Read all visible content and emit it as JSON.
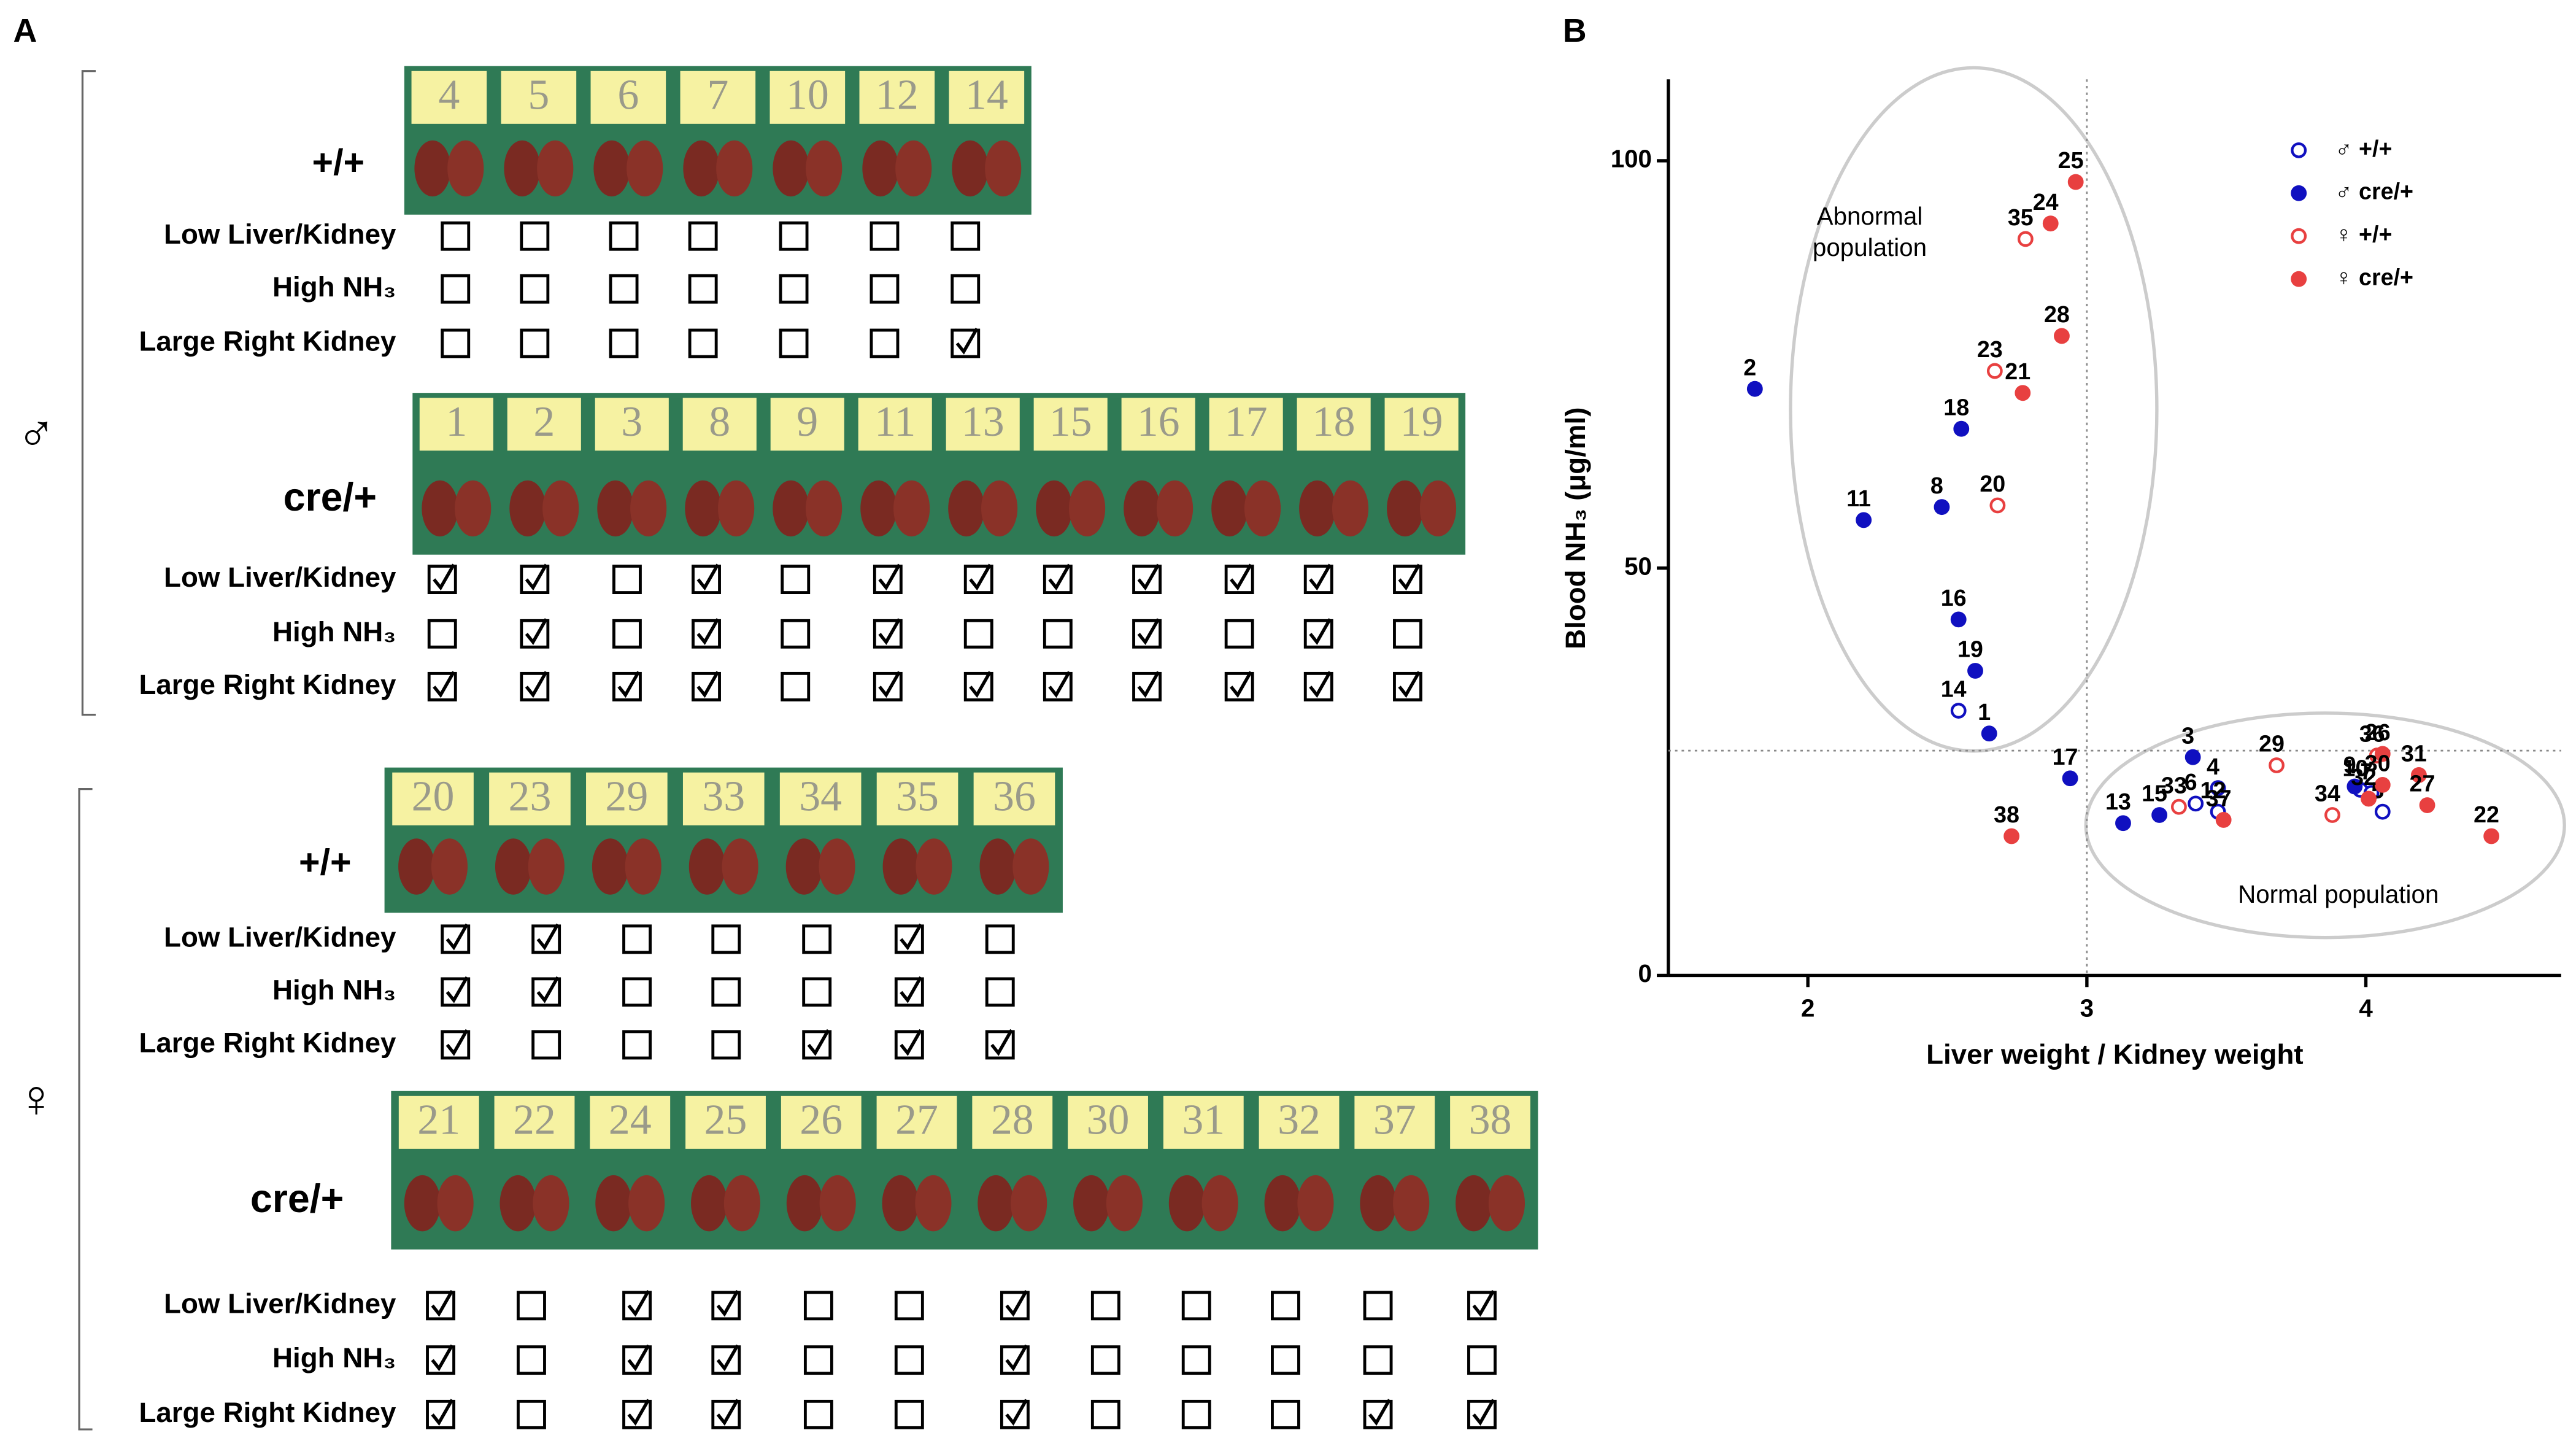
{
  "panel_a": {
    "label": "A",
    "sexes": [
      {
        "symbol": "♂",
        "groups": [
          {
            "genotype": "+/+",
            "ids": [
              "4",
              "5",
              "6",
              "7",
              "10",
              "12",
              "14"
            ],
            "rows": [
              {
                "label": "Low Liver/Kidney",
                "checks": [
                  false,
                  false,
                  false,
                  false,
                  false,
                  false,
                  false
                ]
              },
              {
                "label": "High NH₃",
                "checks": [
                  false,
                  false,
                  false,
                  false,
                  false,
                  false,
                  false
                ]
              },
              {
                "label": "Large Right Kidney",
                "checks": [
                  false,
                  false,
                  false,
                  false,
                  false,
                  false,
                  true
                ]
              }
            ]
          },
          {
            "genotype": "cre/+",
            "ids": [
              "1",
              "2",
              "3",
              "8",
              "9",
              "11",
              "13",
              "15",
              "16",
              "17",
              "18",
              "19"
            ],
            "rows": [
              {
                "label": "Low Liver/Kidney",
                "checks": [
                  true,
                  true,
                  false,
                  true,
                  false,
                  true,
                  true,
                  true,
                  true,
                  true,
                  true,
                  true
                ]
              },
              {
                "label": "High NH₃",
                "checks": [
                  false,
                  true,
                  false,
                  true,
                  false,
                  true,
                  false,
                  false,
                  true,
                  false,
                  true,
                  false
                ]
              },
              {
                "label": "Large Right Kidney",
                "checks": [
                  true,
                  true,
                  true,
                  true,
                  false,
                  true,
                  true,
                  true,
                  true,
                  true,
                  true,
                  true
                ]
              }
            ]
          }
        ]
      },
      {
        "symbol": "♀",
        "groups": [
          {
            "genotype": "+/+",
            "ids": [
              "20",
              "23",
              "29",
              "33",
              "34",
              "35",
              "36"
            ],
            "rows": [
              {
                "label": "Low Liver/Kidney",
                "checks": [
                  true,
                  true,
                  false,
                  false,
                  false,
                  true,
                  false
                ]
              },
              {
                "label": "High NH₃",
                "checks": [
                  true,
                  true,
                  false,
                  false,
                  false,
                  true,
                  false
                ]
              },
              {
                "label": "Large Right Kidney",
                "checks": [
                  true,
                  false,
                  false,
                  false,
                  true,
                  true,
                  true
                ]
              }
            ]
          },
          {
            "genotype": "cre/+",
            "ids": [
              "21",
              "22",
              "24",
              "25",
              "26",
              "27",
              "28",
              "30",
              "31",
              "32",
              "37",
              "38"
            ],
            "rows": [
              {
                "label": "Low Liver/Kidney",
                "checks": [
                  true,
                  false,
                  true,
                  true,
                  false,
                  false,
                  true,
                  false,
                  false,
                  false,
                  false,
                  true
                ]
              },
              {
                "label": "High NH₃",
                "checks": [
                  true,
                  false,
                  true,
                  true,
                  false,
                  false,
                  true,
                  false,
                  false,
                  false,
                  false,
                  false
                ]
              },
              {
                "label": "Large Right Kidney",
                "checks": [
                  true,
                  false,
                  true,
                  true,
                  false,
                  false,
                  true,
                  false,
                  false,
                  false,
                  true,
                  true
                ]
              }
            ]
          }
        ]
      }
    ]
  },
  "chart_data": {
    "type": "scatter",
    "panel_label": "B",
    "x_label": "Liver weight / Kidney weight",
    "y_label": "Blood NH₃ (μg/ml)",
    "xlim": [
      1.5,
      4.7
    ],
    "ylim": [
      0,
      110
    ],
    "xticks": [
      2,
      3,
      4
    ],
    "yticks": [
      0,
      50,
      100
    ],
    "reference_lines": {
      "x": 3,
      "y": 27.6
    },
    "annotations": [
      "Abnormal population",
      "Normal population"
    ],
    "series": [
      {
        "name": "♂ +/+",
        "color": "#1010c0",
        "filled": false,
        "point_labels": [
          "14",
          "4",
          "6",
          "12",
          "10",
          "7",
          "5"
        ],
        "x": [
          2.54,
          3.47,
          3.39,
          3.47,
          3.98,
          4.02,
          4.06
        ],
        "values": [
          32.5,
          23.0,
          21.1,
          20.1,
          22.8,
          22.4,
          20.1
        ]
      },
      {
        "name": "♂ cre/+",
        "color": "#1010c0",
        "filled": true,
        "point_labels": [
          "2",
          "11",
          "8",
          "18",
          "16",
          "19",
          "1",
          "17",
          "3",
          "13",
          "15",
          "9"
        ],
        "x": [
          1.81,
          2.2,
          2.48,
          2.55,
          2.54,
          2.6,
          2.65,
          2.94,
          3.38,
          3.13,
          3.26,
          3.96
        ],
        "values": [
          72.0,
          55.9,
          57.5,
          67.1,
          43.7,
          37.4,
          29.7,
          24.2,
          26.8,
          18.7,
          19.7,
          23.2
        ]
      },
      {
        "name": "♀ +/+",
        "color": "#e84040",
        "filled": false,
        "point_labels": [
          "35",
          "23",
          "20",
          "29",
          "33",
          "34",
          "36"
        ],
        "x": [
          2.78,
          2.67,
          2.68,
          3.68,
          3.33,
          3.88,
          4.04
        ],
        "values": [
          90.4,
          74.2,
          57.7,
          25.8,
          20.7,
          19.7,
          27.0
        ]
      },
      {
        "name": "♀ cre/+",
        "color": "#e84040",
        "filled": true,
        "point_labels": [
          "25",
          "24",
          "28",
          "21",
          "38",
          "37",
          "26",
          "30",
          "31",
          "27",
          "32",
          "22"
        ],
        "x": [
          2.96,
          2.87,
          2.91,
          2.77,
          2.73,
          3.49,
          4.06,
          4.06,
          4.19,
          4.22,
          4.01,
          4.45
        ],
        "values": [
          97.4,
          92.3,
          78.5,
          71.5,
          17.1,
          19.1,
          27.2,
          23.4,
          24.6,
          20.9,
          21.7,
          17.1
        ]
      }
    ]
  }
}
